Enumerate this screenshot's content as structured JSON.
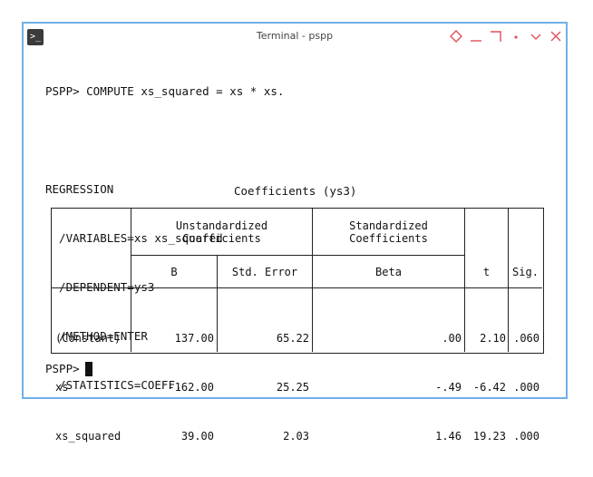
{
  "window": {
    "title": "Terminal - pspp"
  },
  "console": {
    "lines": [
      "PSPP> COMPUTE xs_squared = xs * xs.",
      "",
      "REGRESSION",
      "  /VARIABLES=xs xs_squared",
      "  /DEPENDENT=ys3",
      "  /METHOD=ENTER",
      "  /STATISTICS=COEFF."
    ],
    "prompt": "PSPP>"
  },
  "table": {
    "caption": "Coefficients (ys3)",
    "headers": {
      "unstandardized": "Unstandardized\nCoefficients",
      "standardized": "Standardized\nCoefficients",
      "B": "B",
      "std_error": "Std. Error",
      "beta": "Beta",
      "t": "t",
      "sig": "Sig."
    },
    "rows": [
      {
        "label": "(Constant)",
        "B": "137.00",
        "std_error": "65.22",
        "beta": ".00",
        "t": "2.10",
        "sig": ".060"
      },
      {
        "label": "xs",
        "B": "-162.00",
        "std_error": "25.25",
        "beta": "-.49",
        "t": "-6.42",
        "sig": ".000"
      },
      {
        "label": "xs_squared",
        "B": "39.00",
        "std_error": "2.03",
        "beta": "1.46",
        "t": "19.23",
        "sig": ".000"
      }
    ]
  },
  "icons": {
    "app": "terminal-icon",
    "controls": [
      "diamond-icon",
      "minimize-icon",
      "maximize-icon",
      "dot-icon",
      "chevron-down-icon",
      "close-icon"
    ]
  },
  "colors": {
    "window_border": "#6fb0e8",
    "controls": "#e0505a"
  }
}
